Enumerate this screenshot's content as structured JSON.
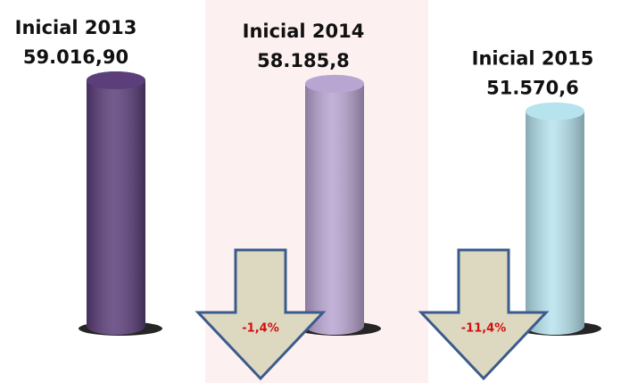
{
  "chart_data": {
    "type": "cylinder",
    "categories": [
      "Inicial 2013",
      "Inicial 2014",
      "Inicial 2015"
    ],
    "values": [
      59016.9,
      58185.8,
      51570.6
    ],
    "value_labels": [
      "59.016,90",
      "58.185,8",
      "51.570,6"
    ],
    "colors": [
      "#5b3e7a",
      "#b9a5d2",
      "#b6e3ee"
    ],
    "annotations": [
      "-1,4%",
      "-11,4%"
    ]
  }
}
